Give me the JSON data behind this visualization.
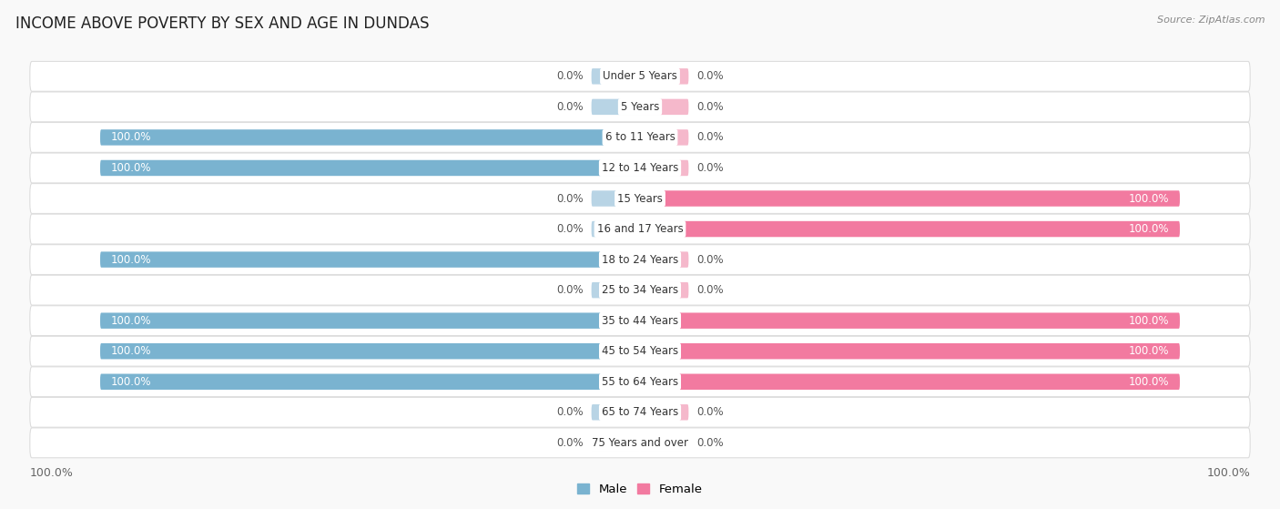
{
  "title": "INCOME ABOVE POVERTY BY SEX AND AGE IN DUNDAS",
  "source": "Source: ZipAtlas.com",
  "categories": [
    "Under 5 Years",
    "5 Years",
    "6 to 11 Years",
    "12 to 14 Years",
    "15 Years",
    "16 and 17 Years",
    "18 to 24 Years",
    "25 to 34 Years",
    "35 to 44 Years",
    "45 to 54 Years",
    "55 to 64 Years",
    "65 to 74 Years",
    "75 Years and over"
  ],
  "male": [
    0.0,
    0.0,
    100.0,
    100.0,
    0.0,
    0.0,
    100.0,
    0.0,
    100.0,
    100.0,
    100.0,
    0.0,
    0.0
  ],
  "female": [
    0.0,
    0.0,
    0.0,
    0.0,
    100.0,
    100.0,
    0.0,
    0.0,
    100.0,
    100.0,
    100.0,
    0.0,
    0.0
  ],
  "male_color": "#7ab3d0",
  "female_color": "#f27aa0",
  "male_color_light": "#b8d4e5",
  "female_color_light": "#f5b8cb",
  "row_bg": "#f4f4f4",
  "row_border": "#dddddd",
  "title_fontsize": 12,
  "source_fontsize": 8,
  "label_fontsize": 8.5,
  "value_fontsize": 8.5,
  "axis_label_fontsize": 9
}
